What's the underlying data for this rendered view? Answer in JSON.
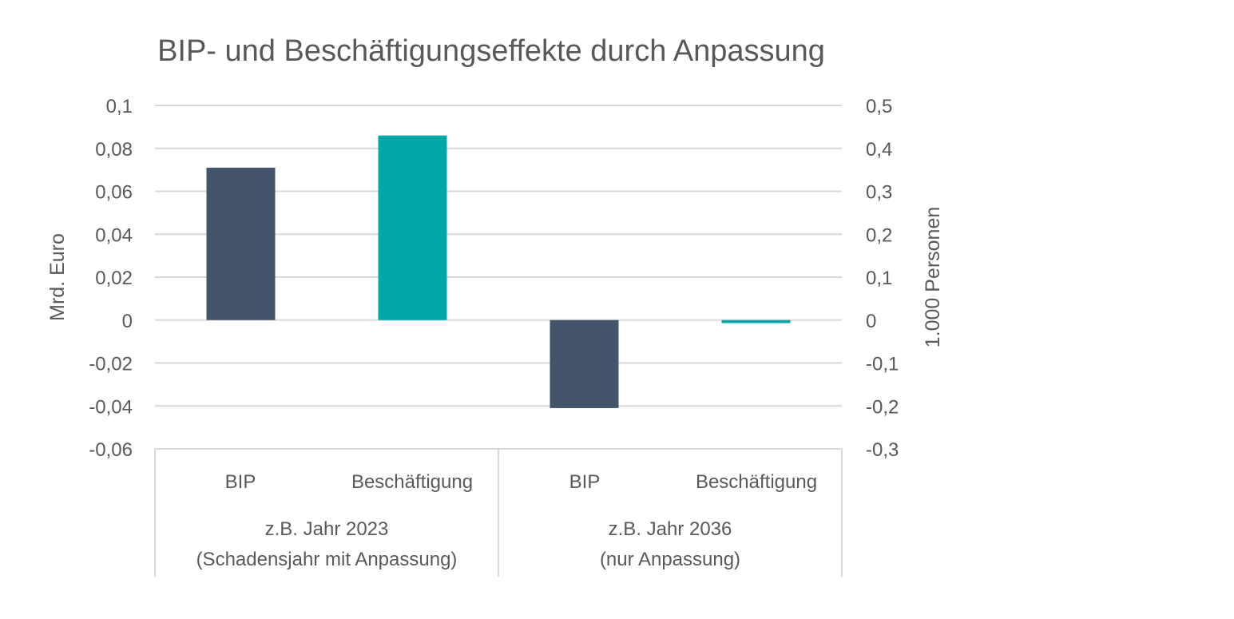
{
  "chart_data": {
    "type": "bar",
    "title": "BIP- und Beschäftigungseffekte durch Anpassung",
    "ylabel": "Mrd. Euro",
    "y2label": "1.000 Personen",
    "ylim": [
      -0.06,
      0.1
    ],
    "y2lim": [
      -0.3,
      0.5
    ],
    "yticks": [
      "0,1",
      "0,08",
      "0,06",
      "0,04",
      "0,02",
      "0",
      "-0,02",
      "-0,04",
      "-0,06"
    ],
    "y2ticks": [
      "0,5",
      "0,4",
      "0,3",
      "0,2",
      "0,1",
      "0",
      "-0,1",
      "-0,2",
      "-0,3"
    ],
    "grid": true,
    "groups": [
      {
        "label_line1": "z.B. Jahr 2023",
        "label_line2": "(Schadensjahr mit Anpassung)"
      },
      {
        "label_line1": "z.B. Jahr 2036",
        "label_line2": "(nur Anpassung)"
      }
    ],
    "bars": [
      {
        "category": "BIP",
        "group": 0,
        "axis": "left",
        "value": 0.071,
        "color": "#44546A"
      },
      {
        "category": "Beschäftigung",
        "group": 0,
        "axis": "right",
        "value": 0.43,
        "color": "#00A8AA"
      },
      {
        "category": "BIP",
        "group": 1,
        "axis": "left",
        "value": -0.041,
        "color": "#44546A"
      },
      {
        "category": "Beschäftigung",
        "group": 1,
        "axis": "right",
        "value": -0.007,
        "color": "#00A8AA"
      }
    ]
  }
}
